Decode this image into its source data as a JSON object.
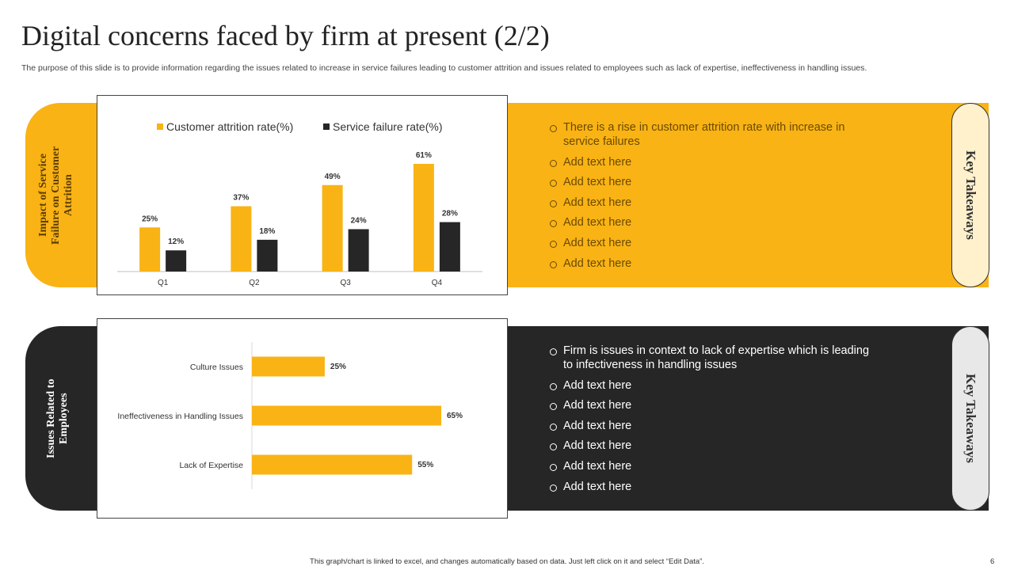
{
  "title": "Digital concerns faced by firm at present (2/2)",
  "subtitle": "The purpose of this slide is to provide information regarding the issues related to increase in service failures leading to customer attrition and issues related to employees such as lack of expertise, ineffectiveness in handling issues.",
  "colors": {
    "yellow": "#F9B315",
    "dark": "#262626"
  },
  "section_top": {
    "side_label": "Impact of Service Failure on Customer Attrition",
    "bullets": [
      "There is a rise in customer attrition rate with increase in service failures",
      "Add text here",
      "Add text here",
      "Add text here",
      "Add text here",
      "Add text here",
      "Add text here"
    ],
    "key_label": "Key Takeaways"
  },
  "section_bottom": {
    "side_label": "Issues Related to Employees",
    "bullets": [
      "Firm is issues in context to lack of expertise which is leading to infectiveness in handling issues",
      "Add text here",
      "Add text here",
      "Add text here",
      "Add text here",
      "Add text here",
      "Add text here"
    ],
    "key_label": "Key Takeaways"
  },
  "chart_data": [
    {
      "type": "bar",
      "categories": [
        "Q1",
        "Q2",
        "Q3",
        "Q4"
      ],
      "series": [
        {
          "name": "Customer attrition rate(%)",
          "values": [
            25,
            37,
            49,
            61
          ],
          "labels": [
            "25%",
            "37%",
            "49%",
            "61%"
          ],
          "color": "#F9B315"
        },
        {
          "name": "Service failure rate(%)",
          "values": [
            12,
            18,
            24,
            28
          ],
          "labels": [
            "12%",
            "18%",
            "24%",
            "28%"
          ],
          "color": "#262626"
        }
      ],
      "ylim": [
        0,
        61
      ],
      "legend": "top"
    },
    {
      "type": "bar",
      "orientation": "horizontal",
      "categories": [
        "Culture Issues",
        "Ineffectiveness in Handling Issues",
        "Lack of Expertise"
      ],
      "values": [
        25,
        65,
        55
      ],
      "labels": [
        "25%",
        "65%",
        "55%"
      ],
      "color": "#F9B315",
      "xlim": [
        0,
        65
      ]
    }
  ],
  "footer": {
    "note": "This graph/chart is linked to excel, and changes automatically based on data. Just left click on it and select “Edit Data”.",
    "page": "6"
  }
}
